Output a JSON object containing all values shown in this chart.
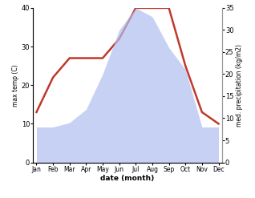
{
  "months": [
    "Jan",
    "Feb",
    "Mar",
    "Apr",
    "May",
    "Jun",
    "Jul",
    "Aug",
    "Sep",
    "Oct",
    "Nov",
    "Dec"
  ],
  "temperature": [
    13,
    22,
    27,
    27,
    27,
    32,
    40,
    40,
    40,
    25,
    13,
    10
  ],
  "precipitation": [
    8,
    8,
    9,
    12,
    20,
    30,
    35,
    33,
    26,
    21,
    8,
    8
  ],
  "temp_color": "#c0392b",
  "precip_color_fill": "#b0bef0",
  "temp_ylim": [
    0,
    40
  ],
  "precip_ylim": [
    0,
    35
  ],
  "temp_yticks": [
    0,
    10,
    20,
    30,
    40
  ],
  "precip_yticks": [
    0,
    5,
    10,
    15,
    20,
    25,
    30,
    35
  ],
  "ylabel_left": "max temp (C)",
  "ylabel_right": "med. precipitation (kg/m2)",
  "xlabel": "date (month)",
  "bg_color": "#ffffff"
}
